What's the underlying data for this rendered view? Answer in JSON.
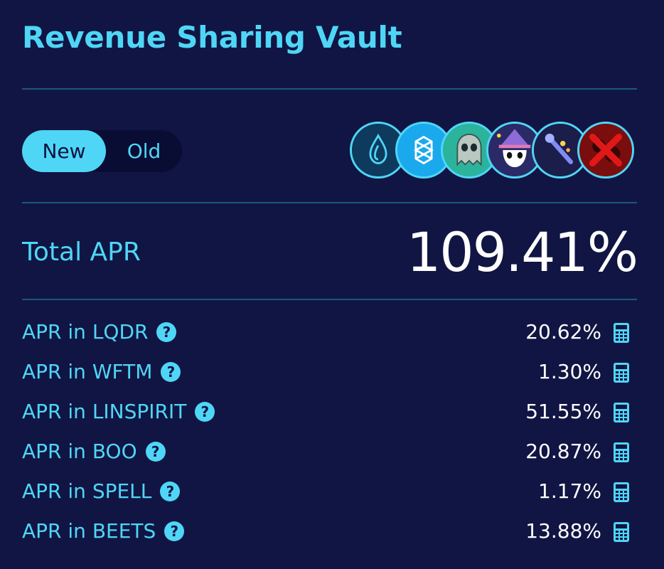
{
  "title": "Revenue Sharing Vault",
  "toggle": {
    "new_label": "New",
    "old_label": "Old",
    "selected": "New"
  },
  "tokens": [
    {
      "icon": "spirit-drop-icon",
      "bg": "#0e3a5e"
    },
    {
      "icon": "fantom-icon",
      "bg": "#1aa9ec"
    },
    {
      "icon": "ghost-icon",
      "bg": "#2bb39c"
    },
    {
      "icon": "wizard-cat-icon",
      "bg": "#2a2a66"
    },
    {
      "icon": "magic-wand-icon",
      "bg": "#1b1d4a"
    },
    {
      "icon": "red-x-icon",
      "bg": "#7a0d0d"
    }
  ],
  "total": {
    "label": "Total APR",
    "value": "109.41%"
  },
  "rows": [
    {
      "label": "APR in LQDR",
      "value": "20.62%"
    },
    {
      "label": "APR in WFTM",
      "value": "1.30%"
    },
    {
      "label": "APR in LINSPIRIT",
      "value": "51.55%"
    },
    {
      "label": "APR in BOO",
      "value": "20.87%"
    },
    {
      "label": "APR in SPELL",
      "value": "1.17%"
    },
    {
      "label": "APR in BEETS",
      "value": "13.88%"
    }
  ],
  "help_glyph": "?",
  "colors": {
    "background": "#111543",
    "accent": "#4fd6f6",
    "divider": "#1d5878",
    "value_text": "#ffffff"
  }
}
